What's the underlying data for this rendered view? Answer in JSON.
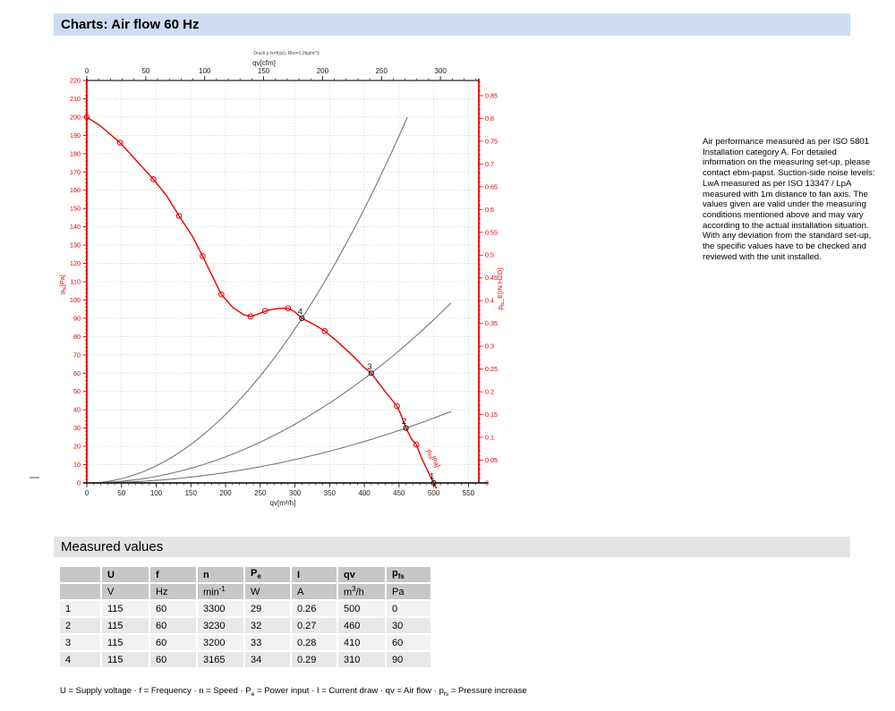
{
  "page": {
    "title_bar": "Charts: Air flow 60 Hz"
  },
  "chart_data": {
    "type": "line",
    "title": "Druck p fs=f(qv); Rho=1.2kg/m^3",
    "axes": {
      "top": {
        "label": "qv[cfm]",
        "ticks": [
          0,
          50,
          100,
          150,
          200,
          250,
          300
        ],
        "minor_step": 10,
        "minor_max": 330,
        "m3h_per_cfm": 1.699
      },
      "bottom": {
        "label": "qv[m³/h]",
        "min": 0,
        "max": 565,
        "tick_step": 50,
        "tick_max": 550,
        "minor_step": 10,
        "minor_max": 560
      },
      "left": {
        "label_pre": "p",
        "label_sub": "fs",
        "label_post": "[Pa]",
        "min": 0,
        "max": 220,
        "tick_step": 10,
        "minor_step": 2
      },
      "right": {
        "label_pre": "p",
        "label_sub": "fs",
        "label_post": "_E[IN H2O]",
        "tick_step": 0.05,
        "tick_max": 0.85,
        "minor_step": 0.01,
        "minor_max": 0.88,
        "pa_per_unit": 249.089
      }
    },
    "grid": {
      "x_step": 50,
      "y_step": 10,
      "color": "#c9c9c9"
    },
    "colors": {
      "pressure_axis": "#e60000",
      "flow_axis": "#222222",
      "fan_curve": "#e60000",
      "load_curve": "#777777",
      "point_label": "#111111"
    },
    "fan_curve": {
      "label_pre": "p",
      "label_sub": "fs",
      "label_post": "[Pa]",
      "points": [
        [
          0,
          200
        ],
        [
          20,
          195
        ],
        [
          48,
          186
        ],
        [
          72,
          176
        ],
        [
          96,
          166
        ],
        [
          115,
          157
        ],
        [
          133,
          146
        ],
        [
          152,
          135
        ],
        [
          167,
          124
        ],
        [
          181,
          113
        ],
        [
          194,
          103
        ],
        [
          210,
          96
        ],
        [
          226,
          92
        ],
        [
          236,
          91
        ],
        [
          248,
          92.5
        ],
        [
          262,
          94.5
        ],
        [
          278,
          95.5
        ],
        [
          290,
          95.5
        ],
        [
          300,
          93.5
        ],
        [
          310,
          90
        ],
        [
          328,
          86.5
        ],
        [
          343,
          83
        ],
        [
          362,
          77
        ],
        [
          382,
          70
        ],
        [
          400,
          63
        ],
        [
          410,
          60
        ],
        [
          430,
          50
        ],
        [
          447,
          42
        ],
        [
          452,
          38
        ],
        [
          460,
          30
        ],
        [
          468,
          24
        ],
        [
          475,
          21
        ],
        [
          482,
          14
        ],
        [
          492,
          6
        ],
        [
          500,
          0
        ],
        [
          504,
          -3
        ]
      ],
      "markers": [
        [
          0,
          200
        ],
        [
          48,
          186
        ],
        [
          96,
          166
        ],
        [
          133,
          146
        ],
        [
          167,
          124
        ],
        [
          194,
          103
        ],
        [
          236,
          91
        ],
        [
          257,
          94
        ],
        [
          290,
          95.5
        ],
        [
          343,
          83
        ],
        [
          447,
          42
        ],
        [
          475,
          21
        ]
      ]
    },
    "load_curves": [
      {
        "name": "load-curve-through-point-4",
        "k": 0.00093652,
        "q_end": 466
      },
      {
        "name": "load-curve-through-point-3",
        "k": 0.00035693,
        "q_end": 527
      },
      {
        "name": "load-curve-through-point-2",
        "k": 0.00014178,
        "q_end": 527
      }
    ],
    "operating_points": [
      {
        "label": "1",
        "qv": 500,
        "pfs": 0
      },
      {
        "label": "2",
        "qv": 460,
        "pfs": 30
      },
      {
        "label": "3",
        "qv": 410,
        "pfs": 60
      },
      {
        "label": "4",
        "qv": 310,
        "pfs": 90
      }
    ]
  },
  "note": {
    "text": "Air performance measured as per ISO 5801 Installation category A. For detailed information on the measuring set-up, please contact ebm-papst. Suction-side noise levels: LwA measured as per ISO 13347 / LpA measured with 1m distance to fan axis. The values given are valid under the measuring conditions mentioned above and may vary according to the actual installation situation. With any deviation from the standard set-up, the specific values have to be checked and reviewed with the unit installed."
  },
  "measured": {
    "title": "Measured values",
    "columns": [
      {
        "pre": ""
      },
      {
        "pre": "U"
      },
      {
        "pre": "f"
      },
      {
        "pre": "n"
      },
      {
        "pre": "P",
        "sub": "e"
      },
      {
        "pre": "I"
      },
      {
        "pre": "qv"
      },
      {
        "pre": "p",
        "sub": "fs"
      }
    ],
    "units": [
      {
        "pre": ""
      },
      {
        "pre": "V"
      },
      {
        "pre": "Hz"
      },
      {
        "pre": "min",
        "sup": "-1"
      },
      {
        "pre": "W"
      },
      {
        "pre": "A"
      },
      {
        "pre": "m",
        "sup": "3",
        "post": "/h"
      },
      {
        "pre": "Pa"
      }
    ],
    "rows": [
      [
        "1",
        "115",
        "60",
        "3300",
        "29",
        "0.26",
        "500",
        "0"
      ],
      [
        "2",
        "115",
        "60",
        "3230",
        "32",
        "0.27",
        "460",
        "30"
      ],
      [
        "3",
        "115",
        "60",
        "3200",
        "33",
        "0.28",
        "410",
        "60"
      ],
      [
        "4",
        "115",
        "60",
        "3165",
        "34",
        "0.29",
        "310",
        "90"
      ]
    ],
    "footnote_parts": [
      {
        "t": "U = Supply voltage · f = Frequency · n = Speed · P"
      },
      {
        "sub": "e"
      },
      {
        "t": " = Power input · I = Current draw · qv = Air flow · p"
      },
      {
        "sub": "fs"
      },
      {
        "t": " = Pressure increase"
      }
    ]
  }
}
